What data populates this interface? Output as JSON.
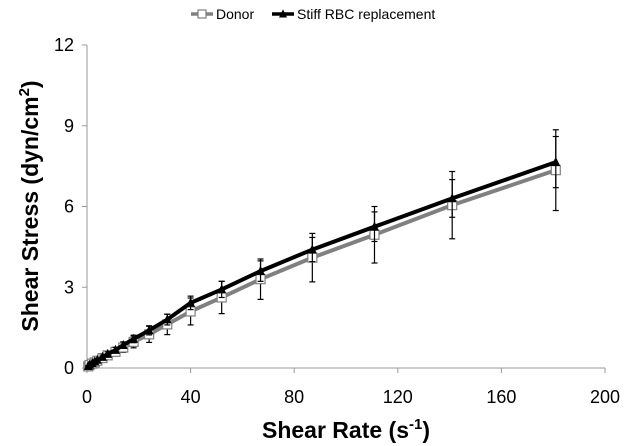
{
  "chart_data": {
    "type": "line",
    "xlabel": "Shear Rate (s",
    "xlabel_sup": "-1",
    "xlabel_end": ")",
    "ylabel": "Shear Stress (dyn/cm",
    "ylabel_sup": "2",
    "ylabel_end": ")",
    "xlim": [
      0,
      200
    ],
    "ylim": [
      0,
      12
    ],
    "x_ticks": [
      "0",
      "40",
      "80",
      "120",
      "160",
      "200"
    ],
    "y_ticks": [
      "0",
      "3",
      "6",
      "9",
      "12"
    ],
    "grid": false,
    "legend_position": "top-center",
    "series": [
      {
        "name": "Donor",
        "color": "#808080",
        "marker": "open-square",
        "x": [
          0.5,
          1,
          2,
          3,
          4,
          6,
          8,
          11,
          14,
          18,
          24,
          31,
          40,
          52,
          67,
          87,
          111,
          141,
          181
        ],
        "y": [
          0.06,
          0.11,
          0.16,
          0.21,
          0.27,
          0.37,
          0.47,
          0.6,
          0.76,
          0.97,
          1.25,
          1.62,
          2.1,
          2.62,
          3.3,
          4.1,
          4.95,
          6.05,
          7.35
        ],
        "err": [
          0.02,
          0.03,
          0.05,
          0.06,
          0.07,
          0.1,
          0.12,
          0.15,
          0.18,
          0.22,
          0.3,
          0.38,
          0.5,
          0.6,
          0.75,
          0.9,
          1.05,
          1.25,
          1.5
        ]
      },
      {
        "name": "Stiff RBC replacement",
        "color": "#000000",
        "marker": "filled-triangle",
        "x": [
          0.5,
          1,
          2,
          3,
          4,
          6,
          8,
          11,
          14,
          18,
          24,
          31,
          40,
          52,
          67,
          87,
          111,
          141,
          181
        ],
        "y": [
          0.07,
          0.12,
          0.18,
          0.24,
          0.3,
          0.41,
          0.52,
          0.67,
          0.85,
          1.08,
          1.4,
          1.8,
          2.42,
          2.92,
          3.6,
          4.4,
          5.25,
          6.3,
          7.65
        ],
        "err": [
          0.02,
          0.03,
          0.04,
          0.05,
          0.06,
          0.07,
          0.08,
          0.1,
          0.12,
          0.14,
          0.17,
          0.2,
          0.25,
          0.3,
          0.38,
          0.45,
          0.55,
          0.7,
          0.95
        ]
      }
    ]
  }
}
